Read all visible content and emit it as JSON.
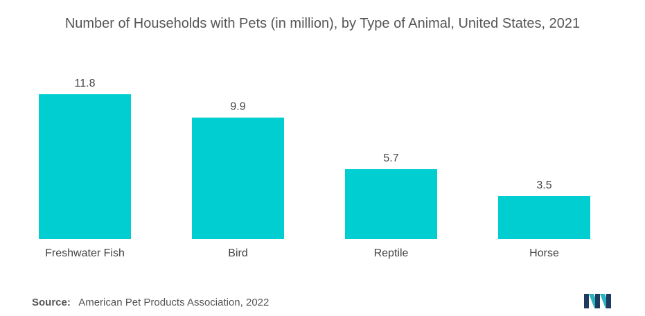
{
  "chart_data": {
    "type": "bar",
    "title": "Number of Households with Pets (in million), by Type of Animal, United States, 2021",
    "categories": [
      "Freshwater Fish",
      "Bird",
      "Reptile",
      "Horse"
    ],
    "values": [
      11.8,
      9.9,
      5.7,
      3.5
    ],
    "value_labels": [
      "11.8",
      "9.9",
      "5.7",
      "3.5"
    ],
    "xlabel": "",
    "ylabel": "",
    "ylim": [
      0,
      11.8
    ],
    "grid": false,
    "legend": "none",
    "bar_color": "#00CED1"
  },
  "footer": {
    "source_label": "Source:",
    "source_text": "American Pet Products Association, 2022"
  },
  "brand": {
    "logo_icon": "mordor-intelligence-logo-icon",
    "colors": [
      "#1F3A5F",
      "#2BB3C0"
    ]
  }
}
